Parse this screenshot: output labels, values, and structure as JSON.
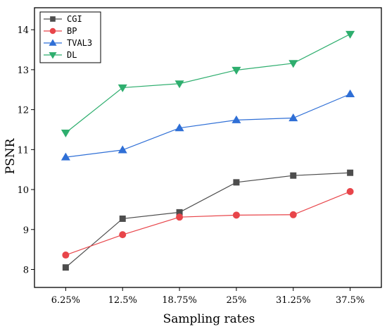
{
  "chart_data": {
    "type": "line",
    "title": "",
    "xlabel": "Sampling rates",
    "ylabel": "PSNR",
    "categories": [
      "6.25%",
      "12.5%",
      "18.75%",
      "25%",
      "31.25%",
      "37.5%"
    ],
    "ylim": [
      7.55,
      14.55
    ],
    "yticks": [
      8,
      9,
      10,
      11,
      12,
      13,
      14
    ],
    "grid": false,
    "legend_position": "top-left",
    "series": [
      {
        "name": "CGI",
        "color": "#4d4d4d",
        "marker": "square",
        "values": [
          8.05,
          9.27,
          9.43,
          10.18,
          10.35,
          10.42
        ]
      },
      {
        "name": "BP",
        "color": "#e8454a",
        "marker": "circle",
        "values": [
          8.36,
          8.87,
          9.31,
          9.36,
          9.37,
          9.95
        ]
      },
      {
        "name": "TVAL3",
        "color": "#2f6fd6",
        "marker": "triangle-up",
        "values": [
          10.81,
          10.99,
          11.54,
          11.74,
          11.79,
          12.39
        ]
      },
      {
        "name": "DL",
        "color": "#2eae6e",
        "marker": "triangle-down",
        "values": [
          11.42,
          12.55,
          12.65,
          12.99,
          13.16,
          13.89
        ]
      }
    ]
  }
}
